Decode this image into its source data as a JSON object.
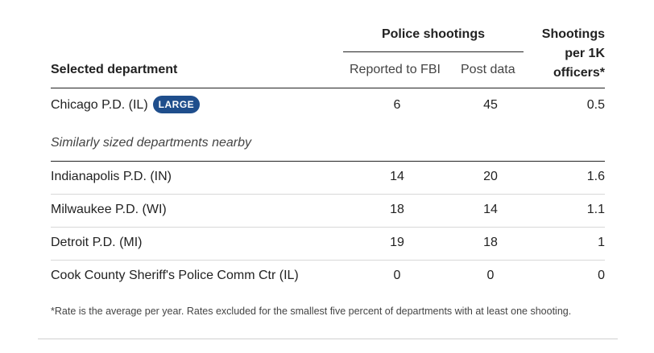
{
  "table": {
    "group_header": "Police shootings",
    "rate_header": [
      "Shootings",
      "per 1K",
      "officers*"
    ],
    "dept_header": "Selected department",
    "col_fbi": "Reported to FBI",
    "col_post": "Post data",
    "selected": {
      "name": "Chicago P.D. (IL)",
      "badge": "LARGE",
      "fbi": "6",
      "post": "45",
      "rate": "0.5"
    },
    "subheading": "Similarly sized departments nearby",
    "rows": [
      {
        "name": "Indianapolis P.D. (IN)",
        "fbi": "14",
        "post": "20",
        "rate": "1.6"
      },
      {
        "name": "Milwaukee P.D. (WI)",
        "fbi": "18",
        "post": "14",
        "rate": "1.1"
      },
      {
        "name": "Detroit P.D. (MI)",
        "fbi": "19",
        "post": "18",
        "rate": "1"
      },
      {
        "name": "Cook County Sheriff's Police Comm Ctr (IL)",
        "fbi": "0",
        "post": "0",
        "rate": "0"
      }
    ],
    "footnote": "*Rate is the average per year. Rates excluded for the smallest five percent of departments with at least one shooting."
  },
  "colors": {
    "badge": "#1f4e8c",
    "rule": "#222222",
    "row_divider": "#d8d8d8"
  },
  "chart_data": {
    "type": "table",
    "columns": [
      "Selected department",
      "Reported to FBI",
      "Post data",
      "Shootings per 1K officers*"
    ],
    "rows": [
      [
        "Chicago P.D. (IL)",
        6,
        45,
        0.5
      ],
      [
        "Indianapolis P.D. (IN)",
        14,
        20,
        1.6
      ],
      [
        "Milwaukee P.D. (WI)",
        18,
        14,
        1.1
      ],
      [
        "Detroit P.D. (MI)",
        19,
        18,
        1
      ],
      [
        "Cook County Sheriff's Police Comm Ctr (IL)",
        0,
        0,
        0
      ]
    ]
  }
}
